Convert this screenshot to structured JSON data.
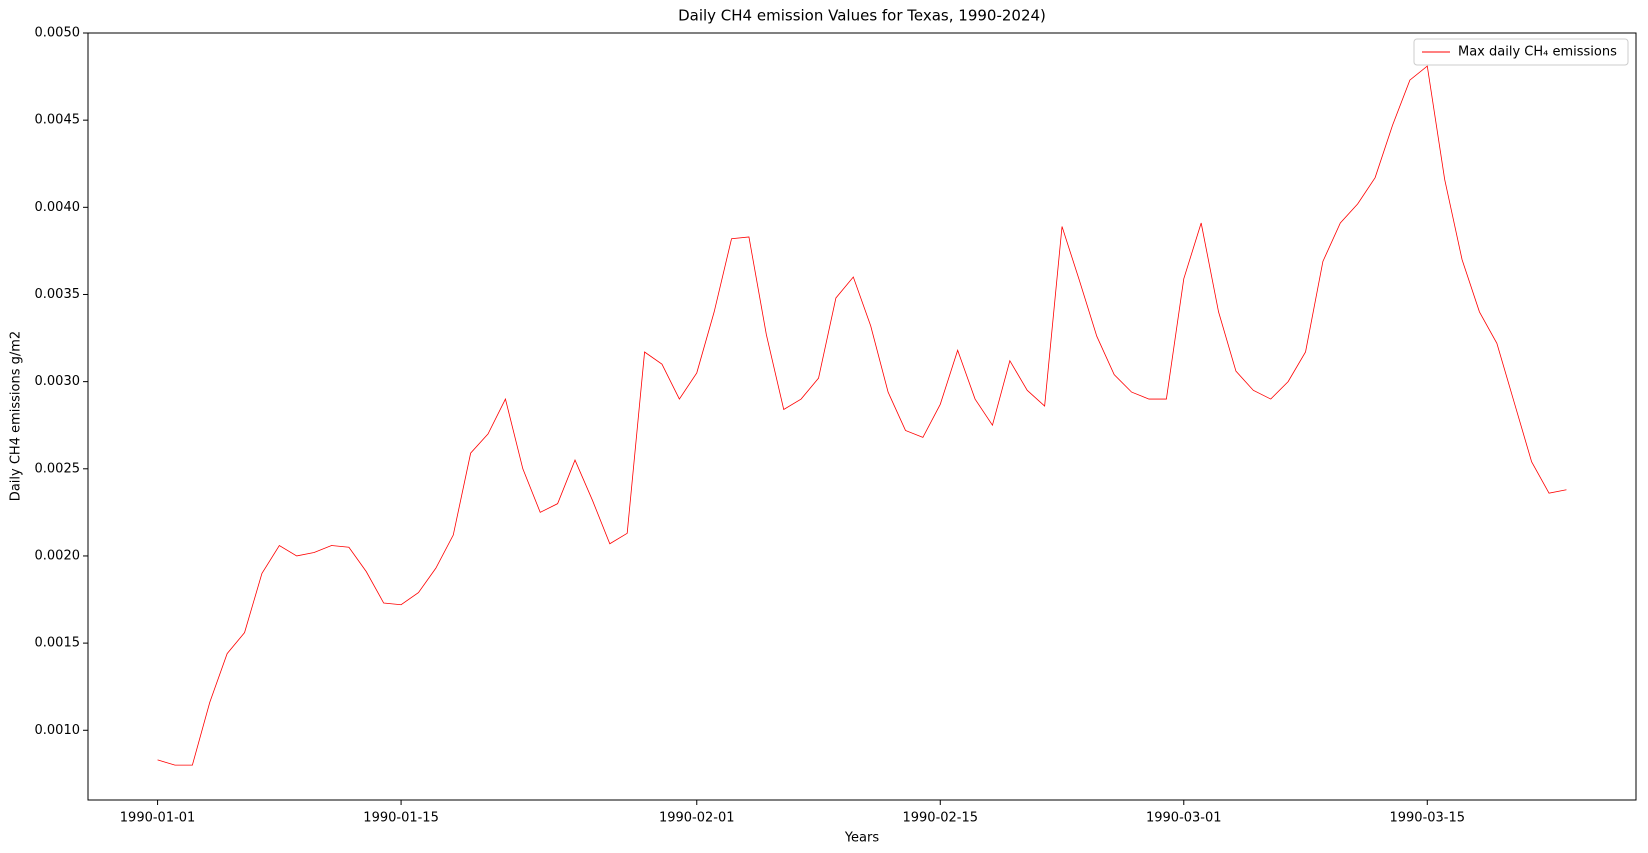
{
  "chart_data": {
    "type": "line",
    "title": "Daily CH4 emission Values for Texas, 1990-2024)",
    "xlabel": "Years",
    "ylabel": "Daily CH4 emissions g/m2",
    "x": [
      "1990-01-01",
      "1990-01-02",
      "1990-01-03",
      "1990-01-04",
      "1990-01-05",
      "1990-01-06",
      "1990-01-07",
      "1990-01-08",
      "1990-01-09",
      "1990-01-10",
      "1990-01-11",
      "1990-01-12",
      "1990-01-13",
      "1990-01-14",
      "1990-01-15",
      "1990-01-16",
      "1990-01-17",
      "1990-01-18",
      "1990-01-19",
      "1990-01-20",
      "1990-01-21",
      "1990-01-22",
      "1990-01-23",
      "1990-01-24",
      "1990-01-25",
      "1990-01-26",
      "1990-01-27",
      "1990-01-28",
      "1990-01-29",
      "1990-01-30",
      "1990-01-31",
      "1990-02-01",
      "1990-02-02",
      "1990-02-03",
      "1990-02-04",
      "1990-02-05",
      "1990-02-06",
      "1990-02-07",
      "1990-02-08",
      "1990-02-09",
      "1990-02-10",
      "1990-02-11",
      "1990-02-12",
      "1990-02-13",
      "1990-02-14",
      "1990-02-15",
      "1990-02-16",
      "1990-02-17",
      "1990-02-18",
      "1990-02-19",
      "1990-02-20",
      "1990-02-21",
      "1990-02-22",
      "1990-02-23",
      "1990-02-24",
      "1990-02-25",
      "1990-02-26",
      "1990-02-27",
      "1990-02-28",
      "1990-03-01",
      "1990-03-02",
      "1990-03-03",
      "1990-03-04",
      "1990-03-05",
      "1990-03-06",
      "1990-03-07",
      "1990-03-08",
      "1990-03-09",
      "1990-03-10",
      "1990-03-11",
      "1990-03-12",
      "1990-03-13",
      "1990-03-14",
      "1990-03-15",
      "1990-03-16",
      "1990-03-17",
      "1990-03-18",
      "1990-03-19",
      "1990-03-20",
      "1990-03-21",
      "1990-03-22",
      "1990-03-23"
    ],
    "series": [
      {
        "name": "Max daily CH₄ emissions",
        "color": "#ff0000",
        "values": [
          0.00083,
          0.0008,
          0.0008,
          0.00116,
          0.00144,
          0.00156,
          0.0019,
          0.00206,
          0.002,
          0.00202,
          0.00206,
          0.00205,
          0.00191,
          0.00173,
          0.00172,
          0.00179,
          0.00193,
          0.00212,
          0.00259,
          0.0027,
          0.0029,
          0.0025,
          0.00225,
          0.0023,
          0.00255,
          0.00232,
          0.00207,
          0.00213,
          0.00317,
          0.0031,
          0.0029,
          0.00305,
          0.0034,
          0.00382,
          0.00383,
          0.00327,
          0.00284,
          0.0029,
          0.00302,
          0.00348,
          0.0036,
          0.00332,
          0.00294,
          0.00272,
          0.00268,
          0.00287,
          0.00318,
          0.0029,
          0.00275,
          0.00312,
          0.00295,
          0.00286,
          0.00389,
          0.00358,
          0.00326,
          0.00304,
          0.00294,
          0.0029,
          0.0029,
          0.00359,
          0.00391,
          0.0034,
          0.00306,
          0.00295,
          0.0029,
          0.003,
          0.00317,
          0.00369,
          0.00391,
          0.00402,
          0.00417,
          0.00447,
          0.00473,
          0.00481,
          0.00416,
          0.0037,
          0.0034,
          0.00322,
          0.00288,
          0.00254,
          0.00236,
          0.00238
        ]
      }
    ],
    "xlim": [
      "1989-12-28",
      "1990-03-27"
    ],
    "xticks": [
      "1990-01-01",
      "1990-01-15",
      "1990-02-01",
      "1990-02-15",
      "1990-03-01",
      "1990-03-15"
    ],
    "ylim": [
      0.0006,
      0.005
    ],
    "yticks": [
      {
        "value": 0.001,
        "label": "0.0010"
      },
      {
        "value": 0.0015,
        "label": "0.0015"
      },
      {
        "value": 0.002,
        "label": "0.0020"
      },
      {
        "value": 0.0025,
        "label": "0.0025"
      },
      {
        "value": 0.003,
        "label": "0.0030"
      },
      {
        "value": 0.0035,
        "label": "0.0035"
      },
      {
        "value": 0.004,
        "label": "0.0040"
      },
      {
        "value": 0.0045,
        "label": "0.0045"
      },
      {
        "value": 0.005,
        "label": "0.0050"
      }
    ],
    "legend": "upper right"
  }
}
